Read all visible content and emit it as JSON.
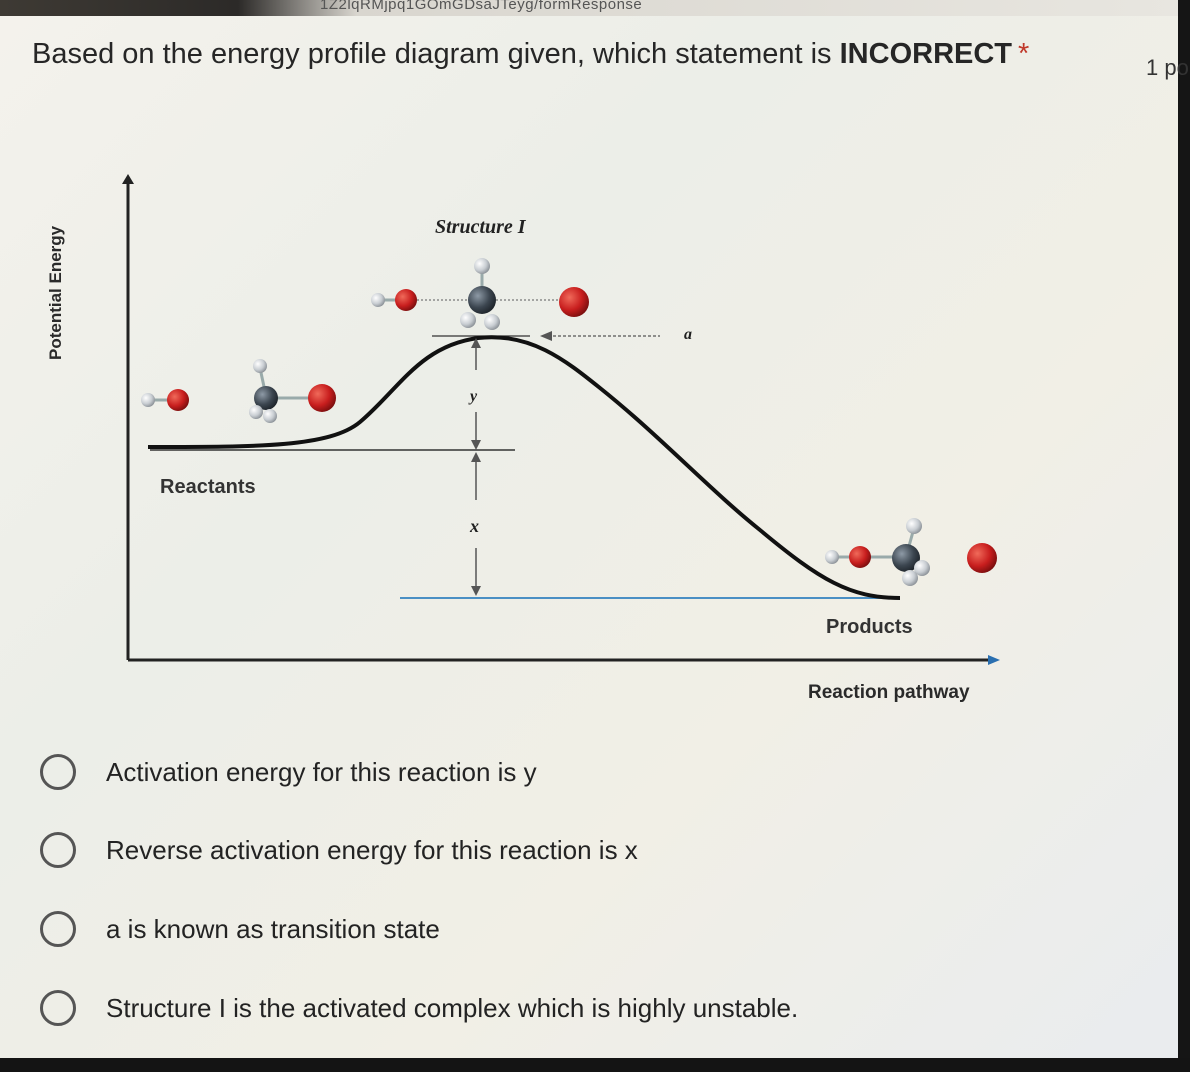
{
  "browser": {
    "url_fragment": "1Z2lqRMjpq1GOmGDsaJTeyg/formResponse"
  },
  "question": {
    "prefix": "Based on the energy profile diagram given, which statement is ",
    "emphasis": "INCORRECT",
    "required_marker": "*",
    "points": "1 po"
  },
  "diagram": {
    "y_axis_label": "Potential Energy",
    "x_axis_label": "Reaction pathway",
    "structure_label": "Structure I",
    "label_a": "a",
    "label_y": "y",
    "label_x": "x",
    "reactants_label": "Reactants",
    "products_label": "Products",
    "colors": {
      "curve": "#111111",
      "oxygen": "#c81e1e",
      "carbon": "#3c4650",
      "hydrogen": "#c8cdd2",
      "guide": "#4a8fc4"
    }
  },
  "options": [
    {
      "label": "Activation energy for this reaction is y"
    },
    {
      "label": "Reverse activation energy for this reaction is x"
    },
    {
      "label": "a is known as transition state"
    },
    {
      "label": "Structure I is the activated complex which is highly unstable."
    }
  ]
}
